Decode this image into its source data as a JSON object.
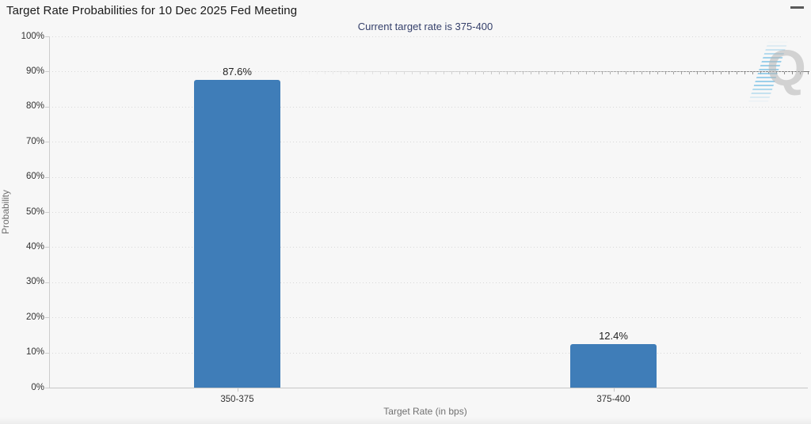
{
  "chart_data": {
    "type": "bar",
    "title": "Target Rate Probabilities for 10 Dec 2025 Fed Meeting",
    "subtitle": "Current target rate is 375-400",
    "categories": [
      "350-375",
      "375-400"
    ],
    "values": [
      87.6,
      12.4
    ],
    "value_labels": [
      "87.6%",
      "12.4%"
    ],
    "xlabel": "Target Rate (in bps)",
    "ylabel": "Probability",
    "ylim": [
      0,
      100
    ],
    "yticks": [
      0,
      10,
      20,
      30,
      40,
      50,
      60,
      70,
      80,
      90,
      100
    ],
    "ytick_labels": [
      "0%",
      "10%",
      "20%",
      "30%",
      "40%",
      "50%",
      "60%",
      "70%",
      "80%",
      "90%",
      "100%"
    ],
    "grid": "horizontal-dotted",
    "legend": "none",
    "bar_color": "#3f7db8"
  },
  "watermark": {
    "letter": "Q"
  },
  "menu": {
    "icon": "hamburger-icon"
  },
  "colors": {
    "background": "#f7f7f7",
    "subtitle_text": "#35406b",
    "axis_text": "#333333",
    "axis_title_text": "#707070",
    "gridline": "#d8d8d8",
    "bar": "#3f7db8"
  }
}
